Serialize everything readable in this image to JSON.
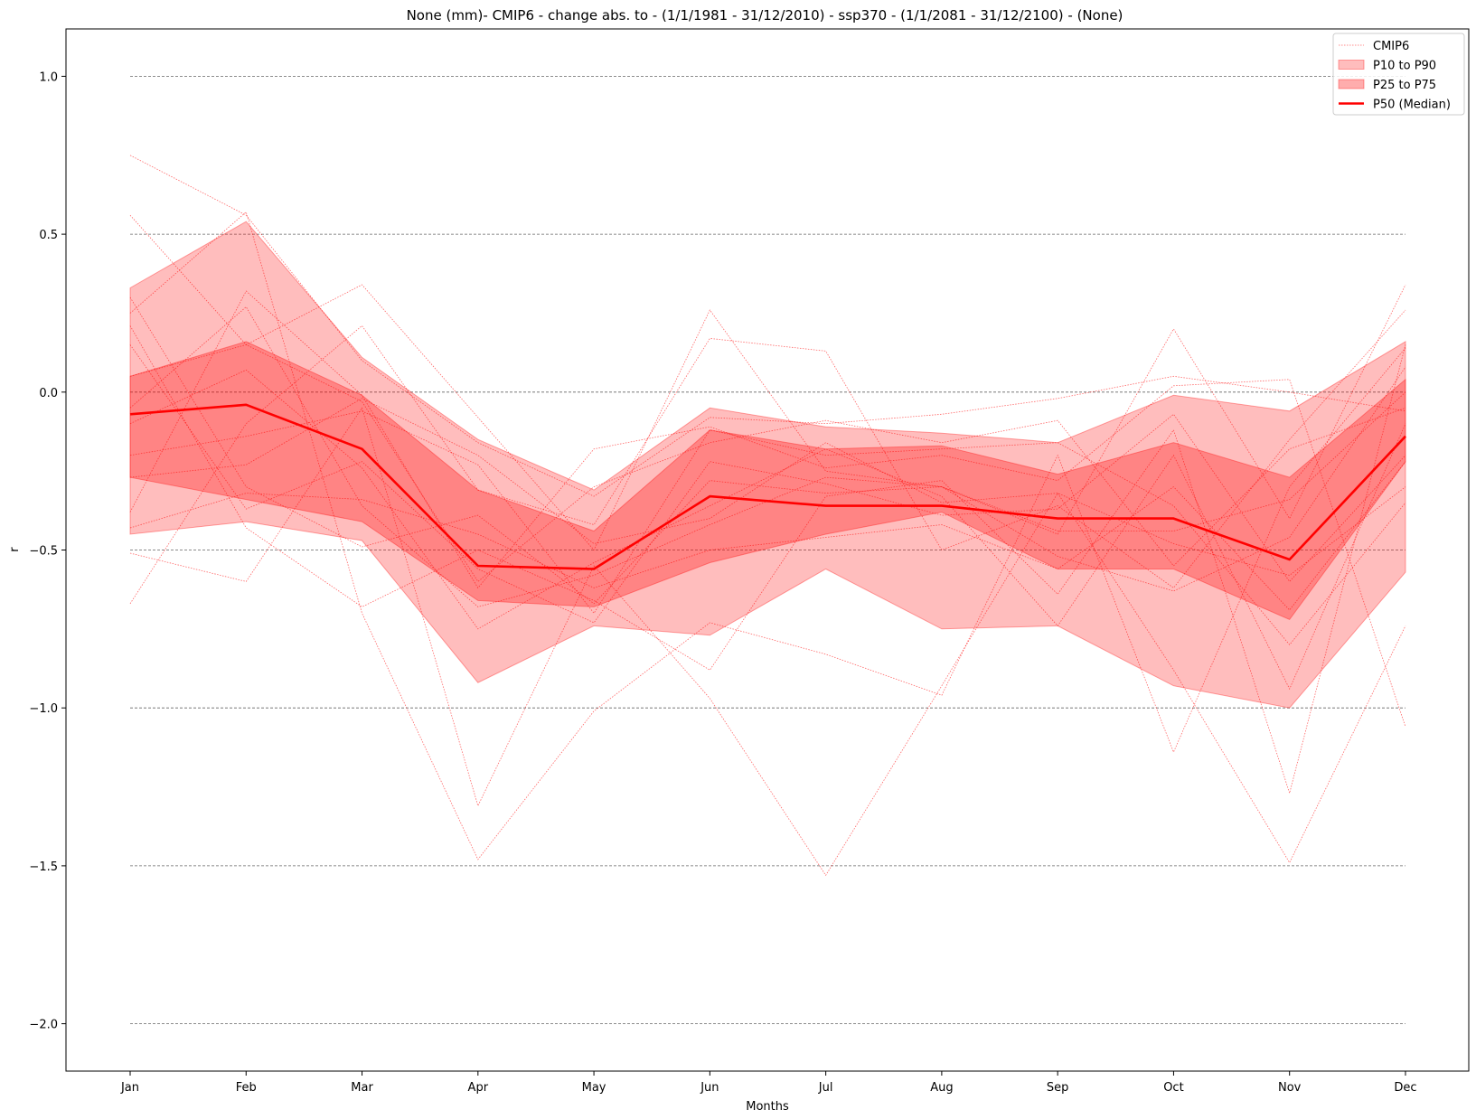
{
  "chart_data": {
    "type": "line",
    "title": "None (mm)- CMIP6 - change abs. to - (1/1/1981 - 31/12/2010)  - ssp370  - (1/1/2081 - 31/12/2100) - (None)",
    "xlabel": "Months",
    "ylabel": "r",
    "categories": [
      "Jan",
      "Feb",
      "Mar",
      "Apr",
      "May",
      "Jun",
      "Jul",
      "Aug",
      "Sep",
      "Oct",
      "Nov",
      "Dec"
    ],
    "ylim": [
      -2.15,
      1.15
    ],
    "yticks": [
      -2.0,
      -1.5,
      -1.0,
      -0.5,
      0.0,
      0.5,
      1.0
    ],
    "ytick_labels": [
      "−2.0",
      "−1.5",
      "−1.0",
      "−0.5",
      "0.0",
      "0.5",
      "1.0"
    ],
    "grid": "horizontal dashed",
    "legend_position": "top-right",
    "legend": [
      "CMIP6",
      "P10 to P90",
      "P25 to P75",
      "P50 (Median)"
    ],
    "bands": {
      "p10": [
        -0.45,
        -0.41,
        -0.47,
        -0.92,
        -0.74,
        -0.77,
        -0.56,
        -0.75,
        -0.74,
        -0.93,
        -1.0,
        -0.57
      ],
      "p90": [
        0.33,
        0.54,
        0.11,
        -0.15,
        -0.31,
        -0.05,
        -0.11,
        -0.13,
        -0.16,
        -0.01,
        -0.06,
        0.16
      ],
      "p25": [
        -0.27,
        -0.34,
        -0.41,
        -0.66,
        -0.68,
        -0.54,
        -0.45,
        -0.38,
        -0.56,
        -0.56,
        -0.72,
        -0.22
      ],
      "p75": [
        0.05,
        0.16,
        -0.01,
        -0.31,
        -0.44,
        -0.12,
        -0.18,
        -0.17,
        -0.26,
        -0.16,
        -0.27,
        0.04
      ]
    },
    "median": [
      -0.07,
      -0.04,
      -0.18,
      -0.55,
      -0.56,
      -0.33,
      -0.36,
      -0.36,
      -0.4,
      -0.4,
      -0.53,
      -0.14
    ],
    "members": [
      [
        0.75,
        0.56,
        0.1,
        -0.16,
        -0.33,
        -0.08,
        -0.1,
        -0.07,
        -0.02,
        0.05,
        0.0,
        -0.06
      ],
      [
        0.56,
        0.15,
        0.34,
        -0.08,
        -0.5,
        0.26,
        -0.25,
        -0.3,
        -0.45,
        0.2,
        -0.4,
        0.34
      ],
      [
        -0.67,
        -0.1,
        0.21,
        -0.31,
        -0.42,
        0.17,
        0.13,
        -0.5,
        -0.36,
        -0.62,
        -0.15,
        0.26
      ],
      [
        -0.51,
        -0.6,
        -0.05,
        -1.31,
        -0.55,
        -0.97,
        -1.53,
        -0.93,
        -0.32,
        -0.88,
        -1.49,
        -0.74
      ],
      [
        0.25,
        0.57,
        -0.7,
        -1.48,
        -1.01,
        -0.73,
        -0.83,
        -0.96,
        -0.2,
        -1.14,
        -0.3,
        0.14
      ],
      [
        -0.38,
        0.32,
        -0.01,
        -0.62,
        -0.18,
        -0.11,
        -0.24,
        -0.2,
        -0.28,
        0.02,
        0.04,
        -1.06
      ],
      [
        0.21,
        -0.43,
        -0.68,
        -0.5,
        -0.66,
        -0.88,
        -0.33,
        -0.28,
        -0.64,
        -0.12,
        -1.27,
        0.15
      ],
      [
        -0.2,
        -0.14,
        -0.06,
        -0.23,
        -0.7,
        -0.12,
        -0.2,
        -0.18,
        -0.16,
        -0.36,
        -0.8,
        -0.35
      ],
      [
        0.05,
        0.15,
        -0.03,
        -0.6,
        -0.3,
        -0.16,
        -0.09,
        -0.16,
        -0.09,
        -0.55,
        -0.18,
        -0.05
      ],
      [
        -0.43,
        -0.32,
        -0.34,
        -0.45,
        -0.62,
        -0.5,
        -0.46,
        -0.42,
        -0.56,
        -0.3,
        -0.69,
        -0.22
      ],
      [
        -0.1,
        0.07,
        -0.24,
        -0.75,
        -0.54,
        -0.36,
        -0.18,
        -0.33,
        -0.74,
        -0.2,
        -0.94,
        -0.1
      ],
      [
        0.3,
        -0.3,
        -0.49,
        -0.39,
        -0.67,
        -0.28,
        -0.32,
        -0.3,
        -0.44,
        -0.44,
        -0.34,
        0.0
      ],
      [
        -0.27,
        -0.23,
        -0.02,
        -0.2,
        -0.48,
        -0.4,
        -0.16,
        -0.35,
        -0.32,
        -0.48,
        -0.58,
        -0.3
      ],
      [
        -0.05,
        0.27,
        -0.36,
        -0.68,
        -0.58,
        -0.42,
        -0.27,
        -0.3,
        -0.52,
        -0.63,
        -0.46,
        0.08
      ],
      [
        0.15,
        -0.37,
        -0.22,
        -0.56,
        -0.73,
        -0.22,
        -0.29,
        -0.39,
        -0.37,
        -0.07,
        -0.6,
        -0.2
      ]
    ],
    "colors": {
      "band_outer": "#ff0000",
      "band_inner": "#ff0000",
      "median": "#ff0000",
      "members": "#ff0000",
      "grid": "#666666"
    }
  }
}
